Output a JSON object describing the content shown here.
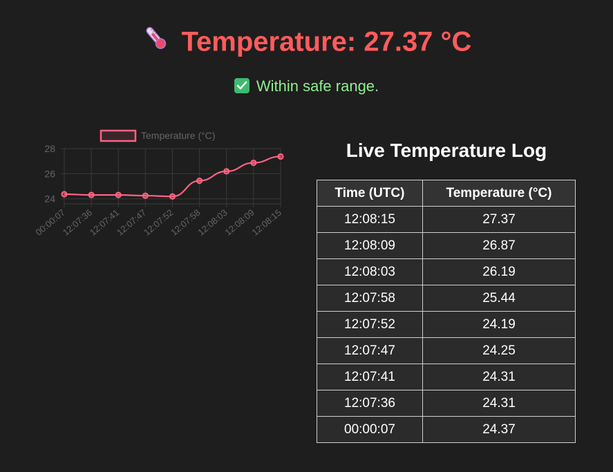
{
  "header": {
    "title": "Temperature: 27.37 °C",
    "title_color": "#ff5c5c",
    "icon": "thermometer-icon"
  },
  "status": {
    "text": "Within safe range.",
    "icon": "check-mark-icon",
    "color": "#90ee90"
  },
  "log": {
    "title": "Live Temperature Log",
    "columns": [
      "Time (UTC)",
      "Temperature (°C)"
    ],
    "rows": [
      [
        "12:08:15",
        "27.37"
      ],
      [
        "12:08:09",
        "26.87"
      ],
      [
        "12:08:03",
        "26.19"
      ],
      [
        "12:07:58",
        "25.44"
      ],
      [
        "12:07:52",
        "24.19"
      ],
      [
        "12:07:47",
        "24.25"
      ],
      [
        "12:07:41",
        "24.31"
      ],
      [
        "12:07:36",
        "24.31"
      ],
      [
        "00:00:07",
        "24.37"
      ]
    ]
  },
  "chart_data": {
    "type": "line",
    "title": "",
    "xlabel": "",
    "ylabel": "",
    "categories": [
      "00:00:07",
      "12:07:36",
      "12:07:41",
      "12:07:47",
      "12:07:52",
      "12:07:58",
      "12:08:03",
      "12:08:09",
      "12:08:15"
    ],
    "series": [
      {
        "name": "Temperature (°C)",
        "values": [
          24.37,
          24.31,
          24.31,
          24.25,
          24.19,
          25.44,
          26.19,
          26.87,
          27.37
        ],
        "color": "#ff6384"
      }
    ],
    "yticks": [
      24,
      26,
      28
    ],
    "ylim": [
      23.6,
      28
    ],
    "grid": true,
    "legend": "top"
  }
}
